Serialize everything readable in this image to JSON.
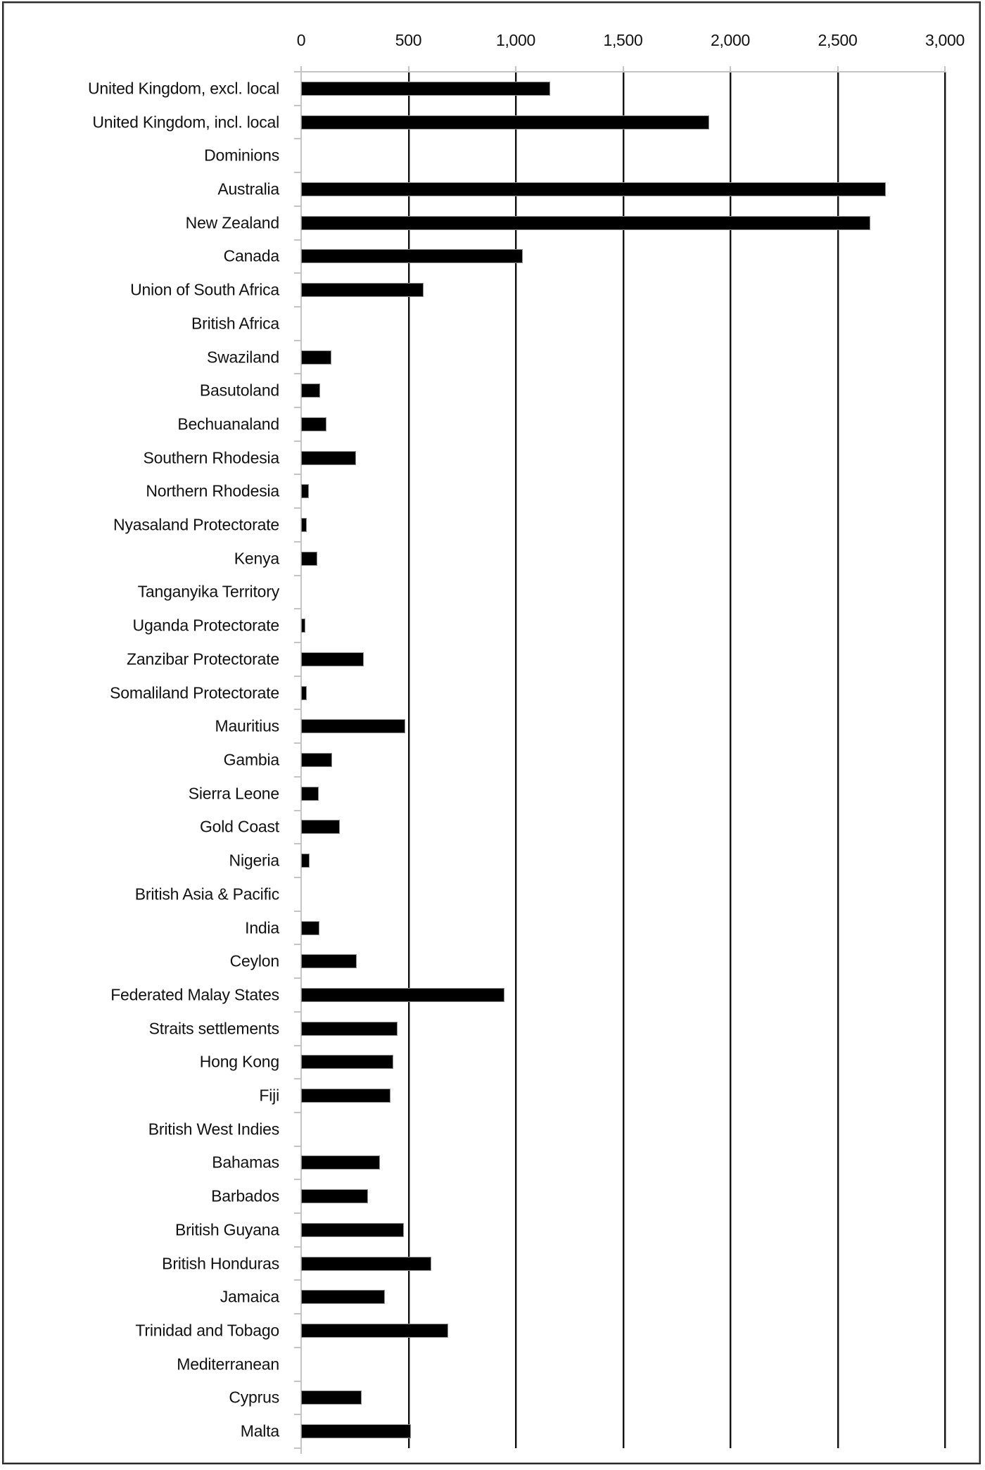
{
  "chart_data": {
    "type": "bar",
    "orientation": "horizontal",
    "title": "",
    "xlabel": "",
    "ylabel": "",
    "xlim": [
      0,
      3000
    ],
    "x_ticks": [
      "0",
      "500",
      "1,000",
      "1,500",
      "2,000",
      "2,500",
      "3,000"
    ],
    "x_tick_values": [
      0,
      500,
      1000,
      1500,
      2000,
      2500,
      3000
    ],
    "x_axis_position": "top",
    "grid": true,
    "legend": "none",
    "bar_color": "#000000",
    "categories": [
      "United Kingdom, excl. local",
      "United Kingdom, incl. local",
      "Dominions",
      "Australia",
      "New Zealand",
      "Canada",
      "Union of South Africa",
      "British Africa",
      "Swaziland",
      "Basutoland",
      "Bechuanaland",
      "Southern Rhodesia",
      "Northern Rhodesia",
      "Nyasaland Protectorate",
      "Kenya",
      "Tanganyika Territory",
      "Uganda Protectorate",
      "Zanzibar Protectorate",
      "Somaliland Protectorate",
      "Mauritius",
      "Gambia",
      "Sierra Leone",
      "Gold Coast",
      "Nigeria",
      "British Asia & Pacific",
      "India",
      "Ceylon",
      "Federated Malay States",
      "Straits settlements",
      "Hong Kong",
      "Fiji",
      "British West Indies",
      "Bahamas",
      "Barbados",
      "British Guyana",
      "British Honduras",
      "Jamaica",
      "Trinidad and Tobago",
      "Mediterranean",
      "Cyprus",
      "Malta"
    ],
    "values": [
      1158,
      1898,
      null,
      2720,
      2648,
      1031,
      568,
      null,
      137,
      86,
      114,
      253,
      34,
      23,
      72,
      null,
      16,
      289,
      22,
      482,
      142,
      78,
      177,
      36,
      null,
      82,
      255,
      944,
      445,
      425,
      412,
      null,
      365,
      308,
      474,
      604,
      388,
      681,
      null,
      278,
      507
    ]
  }
}
